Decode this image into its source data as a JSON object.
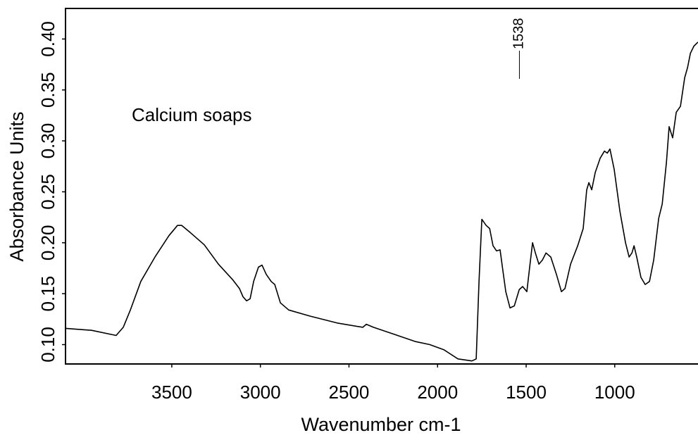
{
  "chart_data": {
    "type": "line",
    "annotation": "Calcium soaps",
    "x_label": "Wavenumber cm-1",
    "y_label": "Absorbance Units",
    "peak_labels": [
      1538
    ],
    "xlim": [
      4100,
      530
    ],
    "xticks": [
      3500,
      3000,
      2500,
      2000,
      1500,
      1000
    ],
    "ylim": [
      0.081,
      0.43
    ],
    "yticks": [
      {
        "value": 0.1,
        "label": "0.10"
      },
      {
        "value": 0.15,
        "label": "0.15"
      },
      {
        "value": 0.2,
        "label": "0.20"
      },
      {
        "value": 0.25,
        "label": "0.25"
      },
      {
        "value": 0.3,
        "label": "0.30"
      },
      {
        "value": 0.35,
        "label": "0.35"
      },
      {
        "value": 0.4,
        "label": "0.40"
      }
    ],
    "x": [
      4100,
      3953,
      3814,
      3774,
      3734,
      3675,
      3595,
      3516,
      3468,
      3444,
      3396,
      3317,
      3237,
      3158,
      3118,
      3098,
      3078,
      3058,
      3038,
      3011,
      2991,
      2967,
      2939,
      2919,
      2887,
      2840,
      2720,
      2561,
      2422,
      2402,
      2362,
      2243,
      2124,
      2044,
      1965,
      1885,
      1806,
      1782,
      1766,
      1750,
      1726,
      1706,
      1687,
      1667,
      1647,
      1631,
      1615,
      1591,
      1567,
      1539,
      1520,
      1496,
      1480,
      1464,
      1448,
      1428,
      1408,
      1388,
      1361,
      1329,
      1301,
      1281,
      1249,
      1209,
      1178,
      1158,
      1146,
      1130,
      1110,
      1082,
      1058,
      1042,
      1027,
      1003,
      971,
      939,
      919,
      903,
      891,
      876,
      852,
      828,
      804,
      780,
      752,
      732,
      708,
      693,
      673,
      653,
      629,
      605,
      589,
      573,
      553,
      530
    ],
    "series": [
      {
        "name": "Calcium soaps",
        "color": "#000000",
        "values": [
          0.116,
          0.114,
          0.109,
          0.117,
          0.134,
          0.162,
          0.186,
          0.207,
          0.217,
          0.217,
          0.21,
          0.198,
          0.179,
          0.164,
          0.155,
          0.147,
          0.143,
          0.145,
          0.162,
          0.176,
          0.178,
          0.169,
          0.162,
          0.159,
          0.141,
          0.134,
          0.128,
          0.121,
          0.117,
          0.12,
          0.117,
          0.11,
          0.103,
          0.1,
          0.095,
          0.086,
          0.084,
          0.086,
          0.162,
          0.223,
          0.217,
          0.214,
          0.197,
          0.192,
          0.193,
          0.172,
          0.152,
          0.136,
          0.138,
          0.154,
          0.157,
          0.152,
          0.176,
          0.2,
          0.19,
          0.179,
          0.183,
          0.19,
          0.186,
          0.169,
          0.152,
          0.155,
          0.179,
          0.197,
          0.214,
          0.252,
          0.259,
          0.252,
          0.269,
          0.283,
          0.29,
          0.288,
          0.292,
          0.272,
          0.231,
          0.2,
          0.186,
          0.19,
          0.197,
          0.186,
          0.166,
          0.159,
          0.162,
          0.183,
          0.224,
          0.238,
          0.279,
          0.314,
          0.303,
          0.328,
          0.334,
          0.362,
          0.372,
          0.386,
          0.393,
          0.397
        ]
      }
    ]
  }
}
